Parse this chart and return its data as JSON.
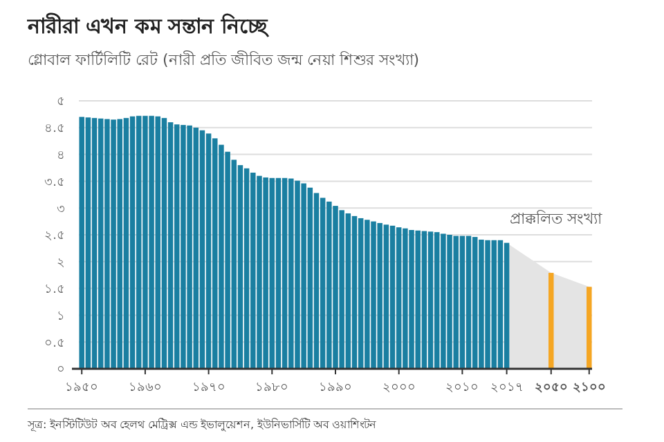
{
  "chart_data": {
    "type": "bar",
    "title": "নারীরা এখন কম সন্তান নিচ্ছে",
    "subtitle": "গ্লোবাল ফার্টিলিটি রেট (নারী প্রতি জীবিত জন্ম নেয়া শিশুর সংখ্যা)",
    "categories": [
      "১৯৫০",
      null,
      null,
      null,
      null,
      null,
      null,
      null,
      null,
      null,
      "১৯৬০",
      null,
      null,
      null,
      null,
      null,
      null,
      null,
      null,
      null,
      "১৯৭০",
      null,
      null,
      null,
      null,
      null,
      null,
      null,
      null,
      null,
      "১৯৮০",
      null,
      null,
      null,
      null,
      null,
      null,
      null,
      null,
      null,
      "১৯৯০",
      null,
      null,
      null,
      null,
      null,
      null,
      null,
      null,
      null,
      "২০০০",
      null,
      null,
      null,
      null,
      null,
      null,
      null,
      null,
      null,
      "২০১০",
      null,
      null,
      null,
      null,
      null,
      null,
      "২০১৭",
      null,
      null,
      null,
      null,
      null,
      null,
      "২০৫০",
      null,
      null,
      null,
      null,
      null,
      "২১০০"
    ],
    "series": [
      {
        "type": "area",
        "color": "#e4e4e4",
        "values": [
          null,
          null,
          null,
          null,
          null,
          null,
          null,
          null,
          null,
          null,
          null,
          null,
          null,
          null,
          null,
          null,
          null,
          null,
          null,
          null,
          null,
          null,
          null,
          null,
          null,
          null,
          null,
          null,
          null,
          null,
          null,
          null,
          null,
          null,
          null,
          null,
          null,
          null,
          null,
          null,
          null,
          null,
          null,
          null,
          null,
          null,
          null,
          null,
          null,
          null,
          null,
          null,
          null,
          null,
          null,
          null,
          null,
          null,
          null,
          null,
          null,
          null,
          null,
          null,
          null,
          null,
          null,
          2.35,
          null,
          null,
          null,
          null,
          null,
          null,
          1.79,
          null,
          null,
          null,
          null,
          null,
          1.53
        ]
      },
      {
        "values": [
          4.7,
          4.69,
          4.68,
          4.67,
          4.66,
          4.65,
          4.66,
          4.68,
          4.71,
          4.72,
          4.72,
          4.72,
          4.71,
          4.68,
          4.6,
          4.56,
          4.55,
          4.54,
          4.5,
          4.45,
          4.39,
          4.3,
          4.18,
          4.05,
          3.9,
          3.8,
          3.74,
          3.66,
          3.6,
          3.57,
          3.56,
          3.56,
          3.56,
          3.55,
          3.51,
          3.46,
          3.38,
          3.28,
          3.19,
          3.12,
          3.04,
          2.96,
          2.9,
          2.85,
          2.81,
          2.78,
          2.75,
          2.72,
          2.69,
          2.67,
          2.64,
          2.62,
          2.59,
          2.58,
          2.57,
          2.56,
          2.55,
          2.52,
          2.5,
          2.48,
          2.48,
          2.48,
          2.46,
          2.41,
          2.4,
          2.4,
          2.4,
          2.35,
          null,
          null,
          null,
          null,
          null,
          null,
          1.79,
          null,
          null,
          null,
          null,
          null,
          1.53
        ],
        "colors": [
          "#1a7fa1",
          "#1a7fa1",
          "#1a7fa1",
          "#1a7fa1",
          "#1a7fa1",
          "#1a7fa1",
          "#1a7fa1",
          "#1a7fa1",
          "#1a7fa1",
          "#1a7fa1",
          "#1a7fa1",
          "#1a7fa1",
          "#1a7fa1",
          "#1a7fa1",
          "#1a7fa1",
          "#1a7fa1",
          "#1a7fa1",
          "#1a7fa1",
          "#1a7fa1",
          "#1a7fa1",
          "#1a7fa1",
          "#1a7fa1",
          "#1a7fa1",
          "#1a7fa1",
          "#1a7fa1",
          "#1a7fa1",
          "#1a7fa1",
          "#1a7fa1",
          "#1a7fa1",
          "#1a7fa1",
          "#1a7fa1",
          "#1a7fa1",
          "#1a7fa1",
          "#1a7fa1",
          "#1a7fa1",
          "#1a7fa1",
          "#1a7fa1",
          "#1a7fa1",
          "#1a7fa1",
          "#1a7fa1",
          "#1a7fa1",
          "#1a7fa1",
          "#1a7fa1",
          "#1a7fa1",
          "#1a7fa1",
          "#1a7fa1",
          "#1a7fa1",
          "#1a7fa1",
          "#1a7fa1",
          "#1a7fa1",
          "#1a7fa1",
          "#1a7fa1",
          "#1a7fa1",
          "#1a7fa1",
          "#1a7fa1",
          "#1a7fa1",
          "#1a7fa1",
          "#1a7fa1",
          "#1a7fa1",
          "#1a7fa1",
          "#1a7fa1",
          "#1a7fa1",
          "#1a7fa1",
          "#1a7fa1",
          "#1a7fa1",
          "#1a7fa1",
          "#1a7fa1",
          "#1a7fa1",
          null,
          null,
          null,
          null,
          null,
          null,
          "#f5a623",
          null,
          null,
          null,
          null,
          null,
          "#f5a623"
        ]
      }
    ],
    "ylim": [
      0,
      5
    ],
    "yticks": [
      {
        "value": 0,
        "label": "০"
      },
      {
        "value": 0.5,
        "label": "০.৫"
      },
      {
        "value": 1,
        "label": "১"
      },
      {
        "value": 1.5,
        "label": "১.৫"
      },
      {
        "value": 2,
        "label": "২"
      },
      {
        "value": 2.5,
        "label": "২.৫"
      },
      {
        "value": 3,
        "label": "৩"
      },
      {
        "value": 3.5,
        "label": "৩.৫"
      },
      {
        "value": 4,
        "label": "৪"
      },
      {
        "value": 4.5,
        "label": "৪.৫"
      },
      {
        "value": 5,
        "label": "৫"
      }
    ],
    "grid": "y",
    "annotations": [
      "প্রাক্কলিত সংখ্যা",
      "সূত্র: ইনস্টিটিউট অব হেলথ মেট্রিক্স এন্ড ইভালুয়েশন, ইউনিভার্সিটি অব ওয়াশিংটন"
    ]
  }
}
